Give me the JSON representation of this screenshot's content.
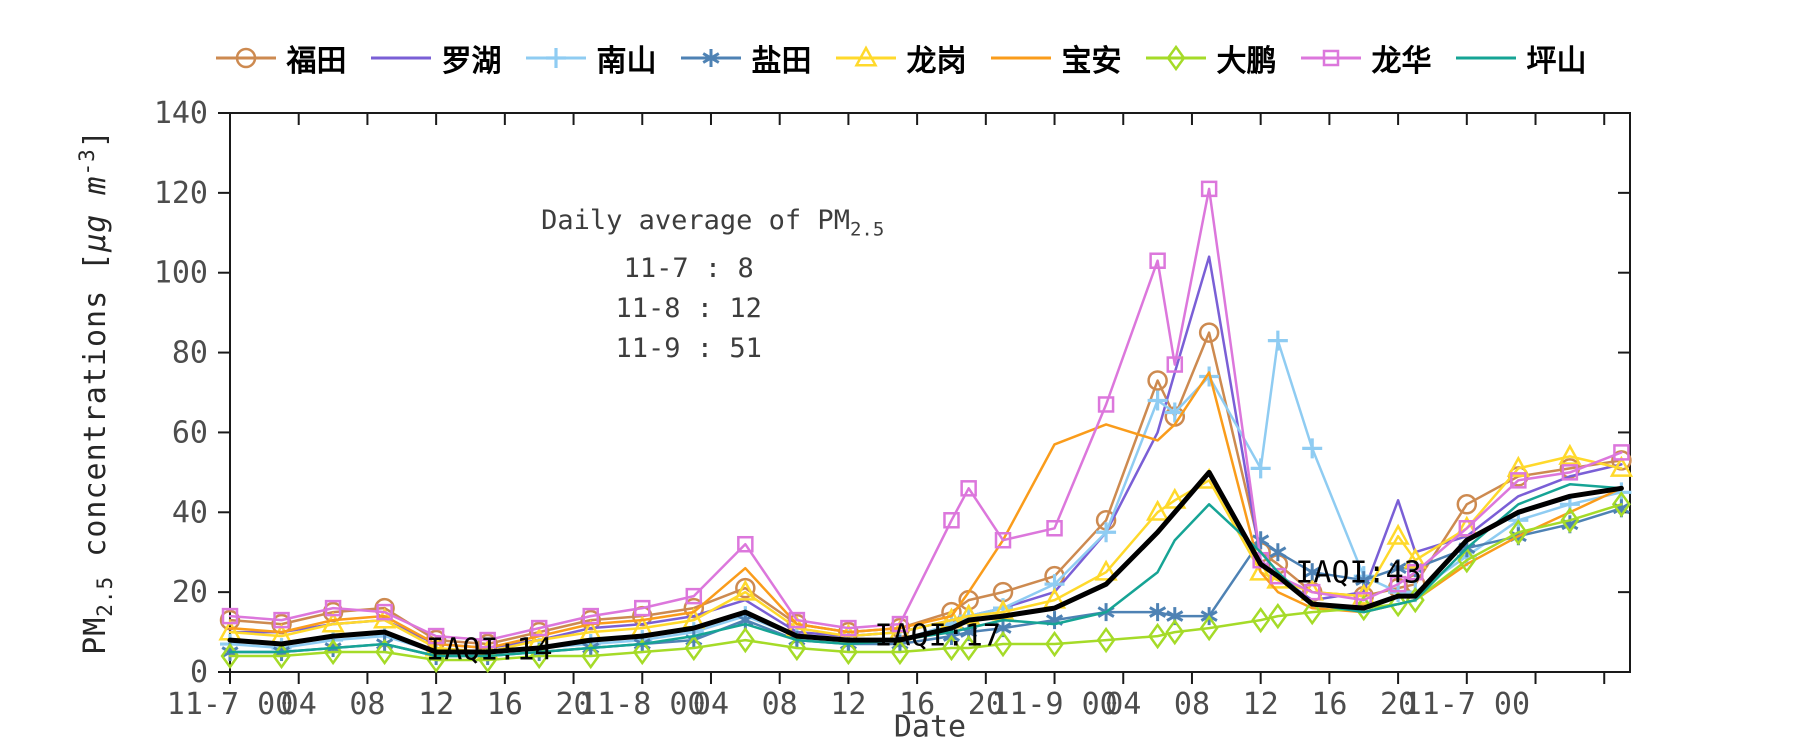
{
  "figure": {
    "xlabel": "Date",
    "ylabel": {
      "pm": "PM",
      "pm_sub": "2.5",
      "mid": " concentrations [",
      "unit": "μg m",
      "exp": "-3",
      "close": "]"
    }
  },
  "annotations": {
    "daily_average": {
      "title_prefix": "Daily average of PM",
      "title_sub": "2.5",
      "lines": [
        "11-7 : 8",
        "11-8 : 12",
        "11-9 : 51"
      ],
      "t": 28.1,
      "v": 112.5
    },
    "iaqi": [
      {
        "label": "IAQI:14",
        "t": 15.1,
        "v": 5.5
      },
      {
        "label": "IAQI:17",
        "t": 41.2,
        "v": 9.0
      },
      {
        "label": "IAQI:43",
        "t": 65.7,
        "v": 24.8
      }
    ]
  },
  "chart_data": {
    "type": "line",
    "title": "",
    "xlabel": "Date",
    "ylabel": "PM2.5 concentrations [ug m-3]",
    "x_unit": "hours since 11-7 00:00",
    "x_max": 81.5,
    "y_max": 140,
    "grid": false,
    "legend_position": "top-center-horizontal",
    "y_ticks": [
      0,
      20,
      40,
      60,
      80,
      100,
      120,
      140
    ],
    "x_ticks": [
      {
        "t": 0,
        "label": "11-7 00"
      },
      {
        "t": 4,
        "label": "04"
      },
      {
        "t": 8,
        "label": "08"
      },
      {
        "t": 12,
        "label": "12"
      },
      {
        "t": 16,
        "label": "16"
      },
      {
        "t": 20,
        "label": "20"
      },
      {
        "t": 24,
        "label": "11-8 00"
      },
      {
        "t": 28,
        "label": "04"
      },
      {
        "t": 32,
        "label": "08"
      },
      {
        "t": 36,
        "label": "12"
      },
      {
        "t": 40,
        "label": "16"
      },
      {
        "t": 44,
        "label": "20"
      },
      {
        "t": 48,
        "label": "11-9 00"
      },
      {
        "t": 52,
        "label": "04"
      },
      {
        "t": 56,
        "label": "08"
      },
      {
        "t": 60,
        "label": "12"
      },
      {
        "t": 64,
        "label": "16"
      },
      {
        "t": 68,
        "label": "20"
      },
      {
        "t": 72,
        "label": "11-7 00"
      },
      {
        "t": 76,
        "label": ""
      },
      {
        "t": 80,
        "label": ""
      }
    ],
    "x": [
      0,
      3,
      6,
      9,
      12,
      15,
      18,
      21,
      24,
      27,
      30,
      33,
      36,
      39,
      42,
      43,
      45,
      48,
      51,
      54,
      55,
      57,
      60,
      61,
      63,
      66,
      68,
      69,
      72,
      75,
      78,
      81
    ],
    "series": [
      {
        "name": "福田",
        "color": "#cd8a50",
        "marker": "circle",
        "width": 2.5,
        "values": [
          13,
          12,
          15,
          16,
          8,
          7,
          10,
          13,
          14,
          16,
          21,
          12,
          10,
          11,
          15,
          18,
          20,
          24,
          38,
          73,
          64,
          85,
          30,
          27,
          20,
          19,
          21,
          22,
          42,
          49,
          51,
          53
        ]
      },
      {
        "name": "罗湖",
        "color": "#7a5fd6",
        "marker": "none",
        "width": 2.5,
        "values": [
          10,
          10,
          12,
          13,
          7,
          6,
          8,
          11,
          12,
          14,
          18,
          10,
          9,
          10,
          13,
          14,
          16,
          20,
          35,
          60,
          75,
          104,
          28,
          24,
          18,
          20,
          43,
          30,
          34,
          44,
          49,
          52
        ]
      },
      {
        "name": "南山",
        "color": "#8fccf2",
        "marker": "plus",
        "width": 2.5,
        "values": [
          7,
          6,
          8,
          9,
          5,
          5,
          6,
          7,
          8,
          10,
          14,
          9,
          8,
          8,
          12,
          14,
          16,
          22,
          35,
          68,
          65,
          74,
          51,
          83,
          56,
          24,
          20,
          20,
          29,
          38,
          42,
          45
        ]
      },
      {
        "name": "盐田",
        "color": "#4e82b4",
        "marker": "asterisk",
        "width": 2.5,
        "values": [
          5,
          5,
          6,
          7,
          4,
          4,
          5,
          6,
          7,
          8,
          13,
          8,
          7,
          7,
          9,
          10,
          11,
          13,
          15,
          15,
          14,
          14,
          33,
          30,
          25,
          23,
          26,
          26,
          31,
          34,
          37,
          41
        ]
      },
      {
        "name": "龙岗",
        "color": "#ffd92b",
        "marker": "triangle",
        "width": 2.5,
        "values": [
          10,
          9,
          12,
          13,
          6,
          5,
          8,
          10,
          11,
          13,
          20,
          11,
          9,
          10,
          13,
          14,
          15,
          18,
          25,
          40,
          43,
          48,
          25,
          23,
          20,
          19,
          34,
          28,
          36,
          51,
          54,
          51
        ]
      },
      {
        "name": "宝安",
        "color": "#fa9c1b",
        "marker": "none",
        "width": 2.5,
        "values": [
          11,
          10,
          13,
          14,
          7,
          6,
          9,
          12,
          13,
          15,
          26,
          12,
          10,
          11,
          14,
          20,
          33,
          57,
          62,
          58,
          62,
          75,
          25,
          20,
          16,
          15,
          17,
          18,
          27,
          34,
          40,
          46
        ]
      },
      {
        "name": "大鹏",
        "color": "#a5db28",
        "marker": "diamond",
        "width": 2.5,
        "values": [
          4,
          4,
          5,
          5,
          3,
          3,
          4,
          4,
          5,
          6,
          8,
          6,
          5,
          5,
          6,
          6,
          7,
          7,
          8,
          9,
          10,
          11,
          13,
          14,
          15,
          16,
          17,
          18,
          28,
          35,
          38,
          42
        ]
      },
      {
        "name": "龙华",
        "color": "#dc77dc",
        "marker": "square",
        "width": 2.5,
        "values": [
          14,
          13,
          16,
          15,
          9,
          8,
          11,
          14,
          16,
          19,
          32,
          13,
          11,
          12,
          38,
          46,
          33,
          36,
          67,
          103,
          77,
          121,
          28,
          24,
          20,
          18,
          22,
          25,
          36,
          48,
          50,
          55
        ]
      },
      {
        "name": "坪山",
        "color": "#16a495",
        "marker": "none",
        "width": 2.5,
        "values": [
          5,
          5,
          6,
          7,
          4,
          4,
          5,
          6,
          7,
          9,
          12,
          8,
          7,
          8,
          10,
          11,
          13,
          12,
          15,
          25,
          33,
          42,
          30,
          25,
          17,
          15,
          17,
          18,
          31,
          42,
          47,
          46
        ]
      },
      {
        "name": "average",
        "color": "#000000",
        "marker": "none",
        "width": 5,
        "in_legend": false,
        "values": [
          8,
          7,
          9,
          10,
          5,
          5,
          6,
          8,
          9,
          11,
          15,
          9,
          8,
          8,
          11,
          13,
          14,
          16,
          22,
          35,
          40,
          50,
          27,
          24,
          17,
          16,
          19,
          19,
          33,
          40,
          44,
          46
        ]
      }
    ]
  }
}
